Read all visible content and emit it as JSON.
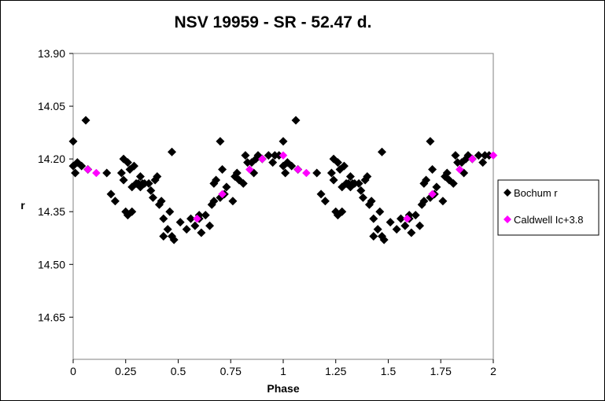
{
  "chart_data": {
    "type": "scatter",
    "title": "NSV 19959 - SR - 52.47 d.",
    "xlabel": "Phase",
    "ylabel": "r",
    "xlim": [
      0,
      2
    ],
    "ylim": [
      13.9,
      14.77
    ],
    "y_inverted": true,
    "x_ticks": [
      0,
      0.25,
      0.5,
      0.75,
      1,
      1.25,
      1.5,
      1.75,
      2
    ],
    "x_tick_labels": [
      "0",
      "0.25",
      "0.5",
      "0.75",
      "1",
      "1.25",
      "1.5",
      "1.75",
      "2"
    ],
    "y_ticks": [
      13.9,
      14.05,
      14.2,
      14.35,
      14.5,
      14.65
    ],
    "y_tick_labels": [
      "13.90",
      "14.05",
      "14.20",
      "14.35",
      "14.50",
      "14.65"
    ],
    "grid": false,
    "legend_position": "right",
    "series": [
      {
        "name": "Bochum r",
        "marker": "diamond",
        "color": "#000000",
        "points": [
          [
            0.0,
            14.22
          ],
          [
            0.0,
            14.15
          ],
          [
            0.01,
            14.24
          ],
          [
            0.02,
            14.21
          ],
          [
            0.04,
            14.22
          ],
          [
            0.06,
            14.09
          ],
          [
            0.07,
            14.23
          ],
          [
            0.16,
            14.24
          ],
          [
            0.18,
            14.3
          ],
          [
            0.2,
            14.32
          ],
          [
            0.23,
            14.24
          ],
          [
            0.24,
            14.2
          ],
          [
            0.24,
            14.26
          ],
          [
            0.25,
            14.35
          ],
          [
            0.26,
            14.36
          ],
          [
            0.26,
            14.21
          ],
          [
            0.27,
            14.23
          ],
          [
            0.28,
            14.28
          ],
          [
            0.28,
            14.35
          ],
          [
            0.29,
            14.22
          ],
          [
            0.3,
            14.27
          ],
          [
            0.31,
            14.27
          ],
          [
            0.32,
            14.25
          ],
          [
            0.32,
            14.28
          ],
          [
            0.33,
            14.27
          ],
          [
            0.34,
            14.27
          ],
          [
            0.36,
            14.27
          ],
          [
            0.37,
            14.29
          ],
          [
            0.38,
            14.31
          ],
          [
            0.39,
            14.26
          ],
          [
            0.4,
            14.25
          ],
          [
            0.41,
            14.33
          ],
          [
            0.42,
            14.32
          ],
          [
            0.43,
            14.37
          ],
          [
            0.43,
            14.42
          ],
          [
            0.45,
            14.4
          ],
          [
            0.46,
            14.35
          ],
          [
            0.47,
            14.18
          ],
          [
            0.47,
            14.42
          ],
          [
            0.48,
            14.43
          ],
          [
            0.51,
            14.38
          ],
          [
            0.54,
            14.4
          ],
          [
            0.56,
            14.37
          ],
          [
            0.58,
            14.39
          ],
          [
            0.6,
            14.37
          ],
          [
            0.6,
            14.36
          ],
          [
            0.61,
            14.41
          ],
          [
            0.63,
            14.36
          ],
          [
            0.65,
            14.39
          ],
          [
            0.66,
            14.33
          ],
          [
            0.67,
            14.32
          ],
          [
            0.67,
            14.27
          ],
          [
            0.68,
            14.26
          ],
          [
            0.7,
            14.15
          ],
          [
            0.7,
            14.31
          ],
          [
            0.71,
            14.23
          ],
          [
            0.72,
            14.3
          ],
          [
            0.73,
            14.28
          ],
          [
            0.76,
            14.32
          ],
          [
            0.77,
            14.25
          ],
          [
            0.78,
            14.24
          ],
          [
            0.79,
            14.26
          ],
          [
            0.81,
            14.27
          ],
          [
            0.82,
            14.19
          ],
          [
            0.83,
            14.21
          ],
          [
            0.85,
            14.21
          ],
          [
            0.86,
            14.24
          ],
          [
            0.87,
            14.2
          ],
          [
            0.88,
            14.19
          ],
          [
            0.9,
            14.2
          ],
          [
            0.93,
            14.19
          ],
          [
            0.95,
            14.21
          ],
          [
            0.96,
            14.19
          ],
          [
            0.98,
            14.19
          ],
          [
            1.0,
            14.22
          ],
          [
            1.0,
            14.15
          ],
          [
            1.01,
            14.24
          ],
          [
            1.02,
            14.21
          ],
          [
            1.04,
            14.22
          ],
          [
            1.06,
            14.09
          ],
          [
            1.07,
            14.23
          ],
          [
            1.16,
            14.24
          ],
          [
            1.18,
            14.3
          ],
          [
            1.2,
            14.32
          ],
          [
            1.23,
            14.24
          ],
          [
            1.24,
            14.2
          ],
          [
            1.24,
            14.26
          ],
          [
            1.25,
            14.35
          ],
          [
            1.26,
            14.36
          ],
          [
            1.26,
            14.21
          ],
          [
            1.27,
            14.23
          ],
          [
            1.28,
            14.28
          ],
          [
            1.28,
            14.35
          ],
          [
            1.29,
            14.22
          ],
          [
            1.3,
            14.27
          ],
          [
            1.31,
            14.27
          ],
          [
            1.32,
            14.25
          ],
          [
            1.32,
            14.28
          ],
          [
            1.33,
            14.27
          ],
          [
            1.34,
            14.27
          ],
          [
            1.36,
            14.27
          ],
          [
            1.37,
            14.29
          ],
          [
            1.38,
            14.31
          ],
          [
            1.39,
            14.26
          ],
          [
            1.4,
            14.25
          ],
          [
            1.41,
            14.33
          ],
          [
            1.42,
            14.32
          ],
          [
            1.43,
            14.37
          ],
          [
            1.43,
            14.42
          ],
          [
            1.45,
            14.4
          ],
          [
            1.46,
            14.35
          ],
          [
            1.47,
            14.18
          ],
          [
            1.47,
            14.42
          ],
          [
            1.48,
            14.43
          ],
          [
            1.51,
            14.38
          ],
          [
            1.54,
            14.4
          ],
          [
            1.56,
            14.37
          ],
          [
            1.58,
            14.39
          ],
          [
            1.6,
            14.37
          ],
          [
            1.6,
            14.36
          ],
          [
            1.61,
            14.41
          ],
          [
            1.63,
            14.36
          ],
          [
            1.65,
            14.39
          ],
          [
            1.66,
            14.33
          ],
          [
            1.67,
            14.32
          ],
          [
            1.67,
            14.27
          ],
          [
            1.68,
            14.26
          ],
          [
            1.7,
            14.15
          ],
          [
            1.7,
            14.31
          ],
          [
            1.71,
            14.23
          ],
          [
            1.72,
            14.3
          ],
          [
            1.73,
            14.28
          ],
          [
            1.76,
            14.32
          ],
          [
            1.77,
            14.25
          ],
          [
            1.78,
            14.24
          ],
          [
            1.79,
            14.26
          ],
          [
            1.81,
            14.27
          ],
          [
            1.82,
            14.19
          ],
          [
            1.83,
            14.21
          ],
          [
            1.85,
            14.21
          ],
          [
            1.86,
            14.24
          ],
          [
            1.87,
            14.2
          ],
          [
            1.88,
            14.19
          ],
          [
            1.9,
            14.2
          ],
          [
            1.93,
            14.19
          ],
          [
            1.95,
            14.21
          ],
          [
            1.96,
            14.19
          ],
          [
            1.98,
            14.19
          ]
        ]
      },
      {
        "name": "Caldwell Ic+3.8",
        "marker": "diamond",
        "color": "#ff00ff",
        "points": [
          [
            0.07,
            14.23
          ],
          [
            0.11,
            14.24
          ],
          [
            0.59,
            14.37
          ],
          [
            0.71,
            14.3
          ],
          [
            0.84,
            14.23
          ],
          [
            0.9,
            14.2
          ],
          [
            1.0,
            14.19
          ],
          [
            1.07,
            14.23
          ],
          [
            1.11,
            14.24
          ],
          [
            1.59,
            14.37
          ],
          [
            1.71,
            14.3
          ],
          [
            1.84,
            14.23
          ],
          [
            1.9,
            14.2
          ],
          [
            2.0,
            14.19
          ]
        ]
      }
    ]
  }
}
